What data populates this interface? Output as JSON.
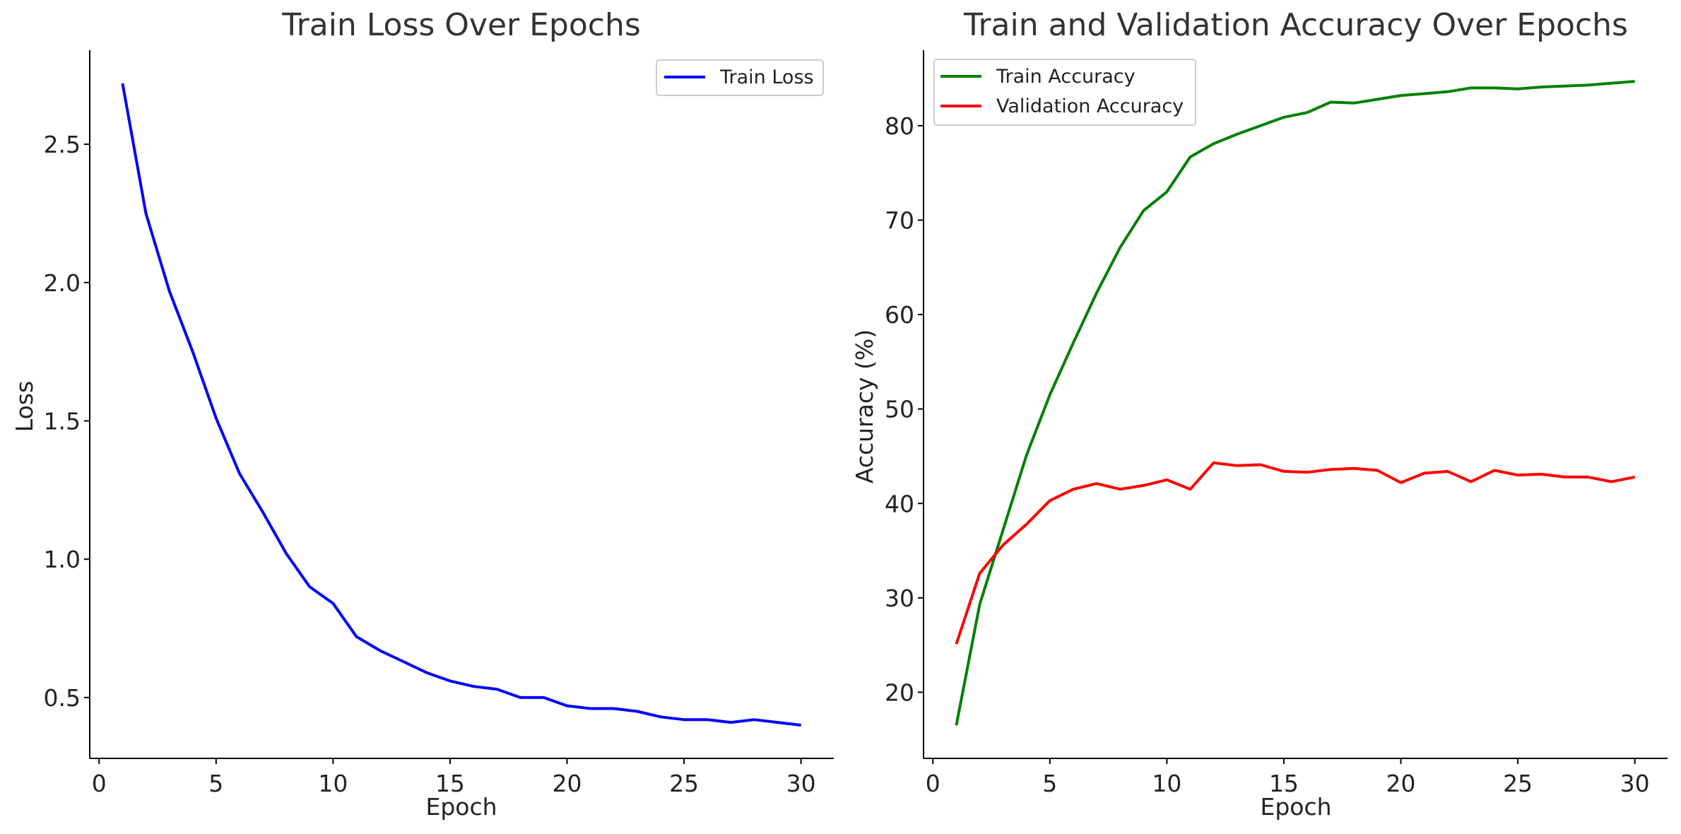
{
  "chart_data": [
    {
      "type": "line",
      "title": "Train Loss Over Epochs",
      "xlabel": "Epoch",
      "ylabel": "Loss",
      "xlim": [
        -0.4,
        31.4
      ],
      "ylim": [
        0.28,
        2.84
      ],
      "xticks": [
        0,
        5,
        10,
        15,
        20,
        25,
        30
      ],
      "yticks": [
        0.5,
        1.0,
        1.5,
        2.0,
        2.5
      ],
      "xtick_labels": [
        "0",
        "5",
        "10",
        "15",
        "20",
        "25",
        "30"
      ],
      "ytick_labels": [
        "0.5",
        "1.0",
        "1.5",
        "2.0",
        "2.5"
      ],
      "grid": false,
      "legend": "top-right",
      "x": [
        1,
        2,
        3,
        4,
        5,
        6,
        7,
        8,
        9,
        10,
        11,
        12,
        13,
        14,
        15,
        16,
        17,
        18,
        19,
        20,
        21,
        22,
        23,
        24,
        25,
        26,
        27,
        28,
        29,
        30
      ],
      "series": [
        {
          "name": "Train Loss",
          "color": "#0000ff",
          "values": [
            2.72,
            2.25,
            1.97,
            1.75,
            1.51,
            1.31,
            1.17,
            1.02,
            0.9,
            0.84,
            0.72,
            0.67,
            0.63,
            0.59,
            0.56,
            0.54,
            0.53,
            0.5,
            0.5,
            0.47,
            0.46,
            0.46,
            0.45,
            0.43,
            0.42,
            0.42,
            0.41,
            0.42,
            0.41,
            0.4
          ]
        }
      ]
    },
    {
      "type": "line",
      "title": "Train and Validation Accuracy Over Epochs",
      "xlabel": "Epoch",
      "ylabel": "Accuracy (%)",
      "xlim": [
        -0.4,
        31.4
      ],
      "ylim": [
        13,
        88
      ],
      "xticks": [
        0,
        5,
        10,
        15,
        20,
        25,
        30
      ],
      "yticks": [
        20,
        30,
        40,
        50,
        60,
        70,
        80
      ],
      "xtick_labels": [
        "0",
        "5",
        "10",
        "15",
        "20",
        "25",
        "30"
      ],
      "ytick_labels": [
        "20",
        "30",
        "40",
        "50",
        "60",
        "70",
        "80"
      ],
      "grid": false,
      "legend": "top-left",
      "x": [
        1,
        2,
        3,
        4,
        5,
        6,
        7,
        8,
        9,
        10,
        11,
        12,
        13,
        14,
        15,
        16,
        17,
        18,
        19,
        20,
        21,
        22,
        23,
        24,
        25,
        26,
        27,
        28,
        29,
        30
      ],
      "series": [
        {
          "name": "Train Accuracy",
          "color": "#008000",
          "values": [
            16.5,
            29.3,
            37.2,
            45.1,
            51.5,
            57.0,
            62.3,
            67.1,
            71.0,
            73.0,
            76.7,
            78.1,
            79.1,
            80.0,
            80.9,
            81.4,
            82.5,
            82.4,
            82.8,
            83.2,
            83.4,
            83.6,
            84.0,
            84.0,
            83.9,
            84.1,
            84.2,
            84.3,
            84.5,
            84.7
          ]
        },
        {
          "name": "Validation Accuracy",
          "color": "#ff0000",
          "values": [
            25.1,
            32.6,
            35.6,
            37.8,
            40.3,
            41.5,
            42.1,
            41.5,
            41.9,
            42.5,
            41.5,
            44.3,
            44.0,
            44.1,
            43.4,
            43.3,
            43.6,
            43.7,
            43.5,
            42.2,
            43.2,
            43.4,
            42.3,
            43.5,
            43.0,
            43.1,
            42.8,
            42.8,
            42.3,
            42.8
          ]
        }
      ]
    }
  ]
}
